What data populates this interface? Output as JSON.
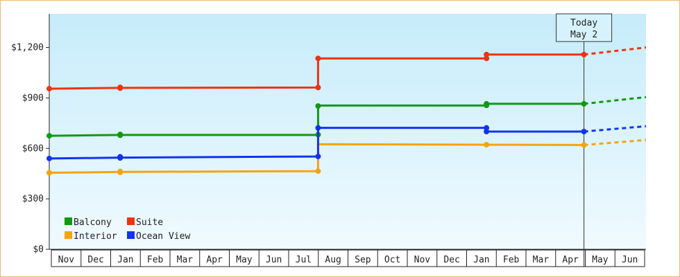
{
  "chart_data": {
    "type": "line",
    "ylim": [
      0,
      1400
    ],
    "ytick_values": [
      0,
      300,
      600,
      900,
      1200
    ],
    "ytick_labels": [
      "$0",
      "$300",
      "$600",
      "$900",
      "$1,200"
    ],
    "months": [
      "Nov",
      "Dec",
      "Jan",
      "Feb",
      "Mar",
      "Apr",
      "May",
      "Jun",
      "Jul",
      "Aug",
      "Sep",
      "Oct",
      "Nov",
      "Dec",
      "Jan",
      "Feb",
      "Mar",
      "Apr",
      "May",
      "Jun"
    ],
    "x_range": [
      0,
      20.2
    ],
    "today_x": 18.1,
    "today_label_line1": "Today",
    "today_label_line2": "May 2",
    "series": [
      {
        "name": "Balcony",
        "color": "#119911",
        "points": [
          [
            0,
            675
          ],
          [
            2.4,
            680
          ],
          [
            9.1,
            680
          ],
          [
            9.1,
            855
          ],
          [
            14.8,
            855
          ],
          [
            14.8,
            865
          ],
          [
            18.1,
            865
          ]
        ],
        "markers": [
          [
            0,
            675
          ],
          [
            2.4,
            678
          ],
          [
            2.4,
            683
          ],
          [
            9.1,
            682
          ],
          [
            9.1,
            852
          ],
          [
            14.8,
            856
          ],
          [
            14.8,
            865
          ],
          [
            18.1,
            865
          ]
        ],
        "projection": [
          [
            18.1,
            865
          ],
          [
            20.2,
            905
          ]
        ]
      },
      {
        "name": "Suite",
        "color": "#ee3311",
        "points": [
          [
            0,
            955
          ],
          [
            2.4,
            960
          ],
          [
            9.1,
            962
          ],
          [
            9.1,
            1135
          ],
          [
            14.8,
            1135
          ],
          [
            14.8,
            1158
          ],
          [
            18.1,
            1158
          ]
        ],
        "markers": [
          [
            0,
            955
          ],
          [
            2.4,
            958
          ],
          [
            2.4,
            963
          ],
          [
            9.1,
            962
          ],
          [
            9.1,
            1135
          ],
          [
            14.8,
            1135
          ],
          [
            14.8,
            1158
          ],
          [
            18.1,
            1158
          ]
        ],
        "projection": [
          [
            18.1,
            1158
          ],
          [
            20.2,
            1200
          ]
        ]
      },
      {
        "name": "Interior",
        "color": "#f5a311",
        "points": [
          [
            0,
            455
          ],
          [
            2.4,
            460
          ],
          [
            9.1,
            465
          ],
          [
            9.1,
            625
          ],
          [
            14.8,
            622
          ],
          [
            18.1,
            620
          ]
        ],
        "markers": [
          [
            0,
            455
          ],
          [
            2.4,
            458
          ],
          [
            2.4,
            463
          ],
          [
            9.1,
            465
          ],
          [
            14.8,
            622
          ],
          [
            18.1,
            620
          ]
        ],
        "projection": [
          [
            18.1,
            620
          ],
          [
            20.2,
            650
          ]
        ]
      },
      {
        "name": "Ocean View",
        "color": "#1133ee",
        "points": [
          [
            0,
            540
          ],
          [
            2.4,
            545
          ],
          [
            9.1,
            552
          ],
          [
            9.1,
            722
          ],
          [
            14.8,
            722
          ],
          [
            14.8,
            700
          ],
          [
            18.1,
            700
          ]
        ],
        "markers": [
          [
            0,
            540
          ],
          [
            2.4,
            543
          ],
          [
            2.4,
            550
          ],
          [
            9.1,
            552
          ],
          [
            9.1,
            722
          ],
          [
            14.8,
            722
          ],
          [
            14.8,
            700
          ],
          [
            18.1,
            700
          ]
        ],
        "projection": [
          [
            18.1,
            700
          ],
          [
            20.2,
            732
          ]
        ]
      }
    ],
    "legend_placement": "bottom-left"
  }
}
